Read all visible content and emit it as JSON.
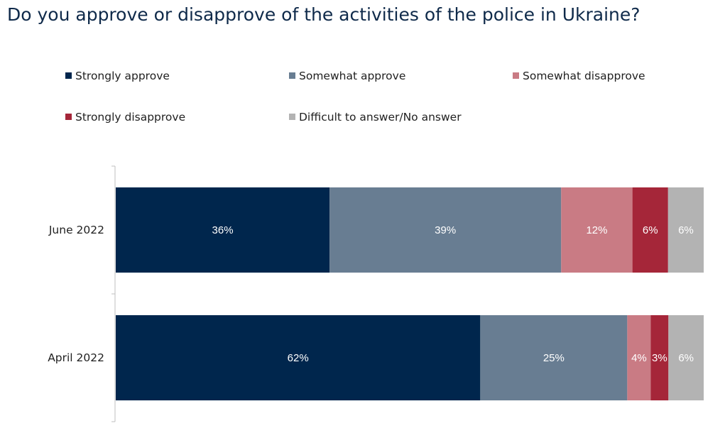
{
  "chart_data": {
    "type": "bar",
    "orientation": "horizontal",
    "stacked": true,
    "title": "Do you approve or disapprove of the activities of the police in Ukraine?",
    "categories": [
      "June 2022",
      "April 2022"
    ],
    "series": [
      {
        "name": "Strongly approve",
        "color": "#00264d",
        "values": [
          36,
          62
        ],
        "labels": [
          "36%",
          "62%"
        ]
      },
      {
        "name": "Somewhat approve",
        "color": "#687d92",
        "values": [
          39,
          25
        ],
        "labels": [
          "39%",
          "25%"
        ]
      },
      {
        "name": "Somewhat disapprove",
        "color": "#c97b84",
        "values": [
          12,
          4
        ],
        "labels": [
          "12%",
          "4%"
        ]
      },
      {
        "name": "Strongly disapprove",
        "color": "#a52639",
        "values": [
          6,
          3
        ],
        "labels": [
          "6%",
          "3%"
        ]
      },
      {
        "name": "Difficult to answer/No answer",
        "color": "#b3b3b3",
        "values": [
          6,
          6
        ],
        "labels": [
          "6%",
          "6%"
        ]
      }
    ],
    "legend_position": "top",
    "grid": false
  }
}
